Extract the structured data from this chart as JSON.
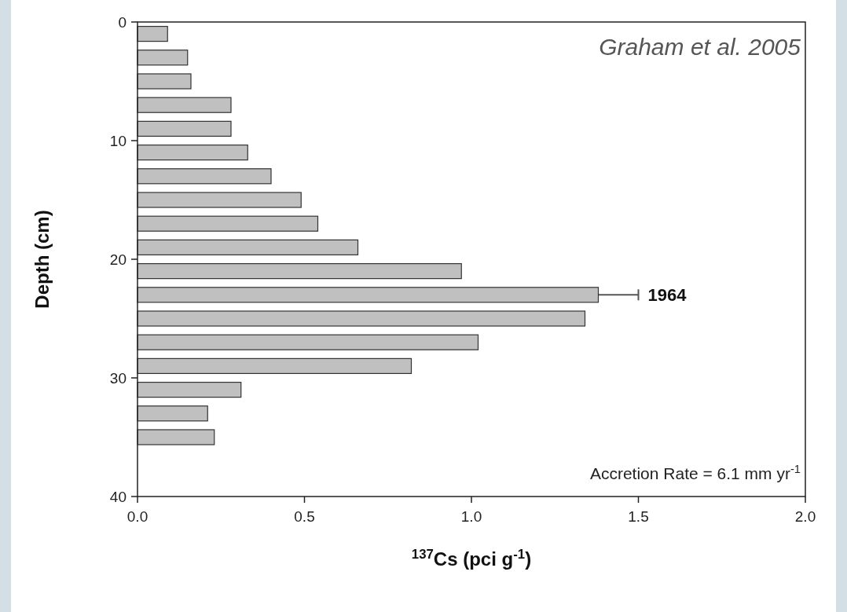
{
  "chart_data": {
    "type": "bar",
    "orientation": "horizontal",
    "ylabel": "Depth (cm)",
    "xlabel": "$^{137}$Cs (pci g$^{-1}$)",
    "x": [
      1,
      3,
      5,
      7,
      9,
      11,
      13,
      15,
      17,
      19,
      21,
      23,
      25,
      27,
      29,
      31,
      33,
      35
    ],
    "values": [
      0.09,
      0.15,
      0.16,
      0.28,
      0.28,
      0.33,
      0.4,
      0.49,
      0.54,
      0.66,
      0.97,
      1.38,
      1.34,
      1.02,
      0.82,
      0.31,
      0.21,
      0.23
    ],
    "errors": [
      null,
      null,
      null,
      null,
      null,
      null,
      null,
      null,
      null,
      null,
      null,
      0.12,
      null,
      null,
      null,
      null,
      null,
      null
    ],
    "color": "#c0c0c0",
    "xlim": [
      0,
      2
    ],
    "xticks": [
      {
        "value": 0,
        "label": "0.0"
      },
      {
        "value": 0.5,
        "label": "0.5"
      },
      {
        "value": 1,
        "label": "1.0"
      },
      {
        "value": 1.5,
        "label": "1.5"
      },
      {
        "value": 2,
        "label": "2.0"
      }
    ],
    "ylim": [
      40,
      0
    ],
    "yticks": [
      0,
      10,
      20,
      30,
      40
    ],
    "annotations": [
      "Graham et al. 2005",
      {
        "text": "1964",
        "x": 1.5,
        "y": 23
      },
      "Accretion Rate = 6.1 mm yr$^{-1}$"
    ]
  }
}
